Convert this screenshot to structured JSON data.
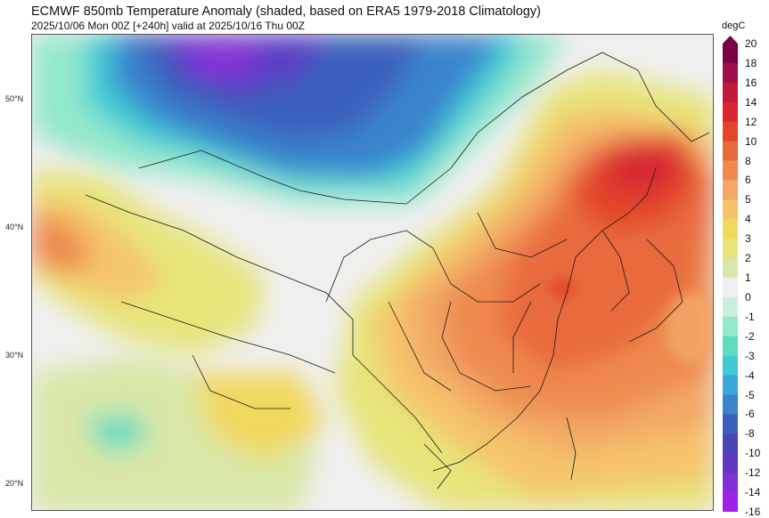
{
  "header": {
    "title": "ECMWF 850mb Temperature Anomaly (shaded, based on ERA5 1979-2018 Climatology)",
    "subtitle": "2025/10/06 Mon 00Z [+240h] valid at 2025/10/16 Thu 00Z"
  },
  "map": {
    "lat_labels": [
      "50°N",
      "40°N",
      "30°N",
      "20°N"
    ]
  },
  "colorbar": {
    "unit": "degC",
    "levels": [
      "20",
      "18",
      "16",
      "14",
      "12",
      "10",
      "8",
      "6",
      "5",
      "4",
      "3",
      "2",
      "1",
      "0",
      "-1",
      "-2",
      "-3",
      "-4",
      "-5",
      "-6",
      "-8",
      "-10",
      "-12",
      "-14",
      "-16"
    ],
    "colors": [
      "#7b0046",
      "#a10e4a",
      "#c01a3a",
      "#d82530",
      "#e2442c",
      "#e86a3c",
      "#ee8a50",
      "#f2a866",
      "#f5c46a",
      "#f1d85e",
      "#e7e57a",
      "#d9e7a8",
      "#f0f0f0",
      "#c7f0de",
      "#93e8cb",
      "#5fdcc0",
      "#3fcad6",
      "#3aa8d8",
      "#3b84cc",
      "#3b60bc",
      "#4a46b4",
      "#6038c0",
      "#8030d4",
      "#a020e8"
    ]
  }
}
